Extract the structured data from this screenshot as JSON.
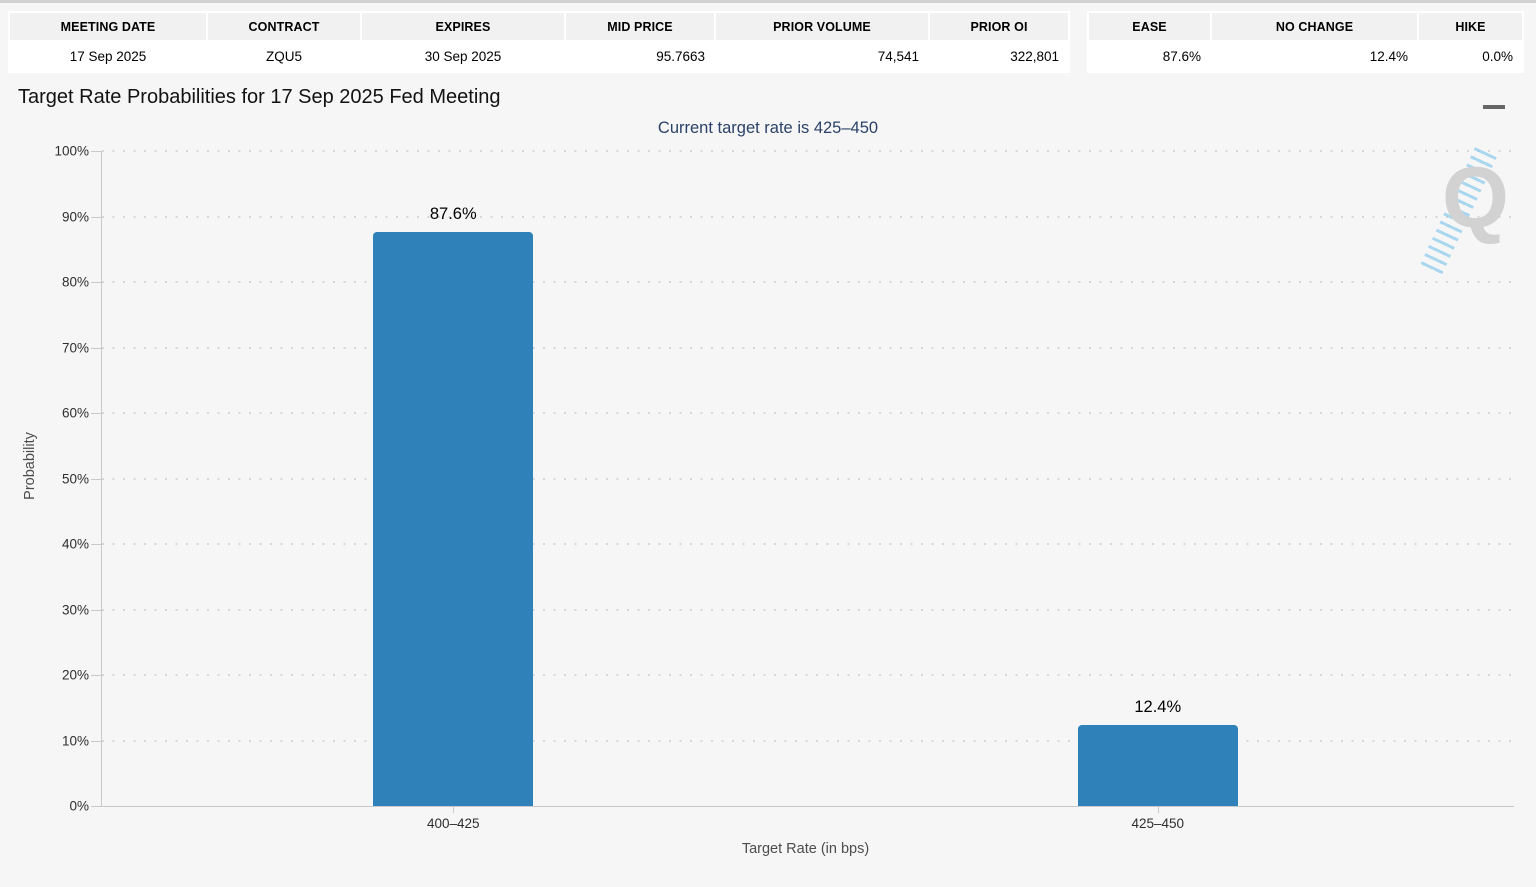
{
  "contract_table": {
    "headers": [
      "MEETING DATE",
      "CONTRACT",
      "EXPIRES",
      "MID PRICE",
      "PRIOR VOLUME",
      "PRIOR OI"
    ],
    "values": [
      "17 Sep 2025",
      "ZQU5",
      "30 Sep 2025",
      "95.7663",
      "74,541",
      "322,801"
    ],
    "value_align": [
      "center",
      "center",
      "center",
      "right",
      "right",
      "right"
    ]
  },
  "action_table": {
    "headers": [
      "EASE",
      "NO CHANGE",
      "HIKE"
    ],
    "values": [
      "87.6%",
      "12.4%",
      "0.0%"
    ],
    "value_align": [
      "right",
      "right",
      "right"
    ]
  },
  "menu": {
    "icon": "hamburger-icon"
  },
  "watermark": {
    "letter": "Q"
  },
  "chart_data": {
    "type": "bar",
    "title": "Target Rate Probabilities for 17 Sep 2025 Fed Meeting",
    "subtitle": "Current target rate is 425–450",
    "categories": [
      "400–425",
      "425–450"
    ],
    "values": [
      87.6,
      12.4
    ],
    "value_labels": [
      "87.6%",
      "12.4%"
    ],
    "xlabel": "Target Rate (in bps)",
    "ylabel": "Probability",
    "ylim": [
      0,
      100
    ],
    "ytick_step": 10,
    "ytick_suffix": "%",
    "grid": "horizontal-dotted",
    "legend": "none",
    "colors": {
      "bar": "#2f81b9",
      "subtitle": "#2b4168",
      "axis_line": "#c9c9c9",
      "grid_dots": "#d6d6d6",
      "panel_bg": "#f6f6f6"
    }
  }
}
